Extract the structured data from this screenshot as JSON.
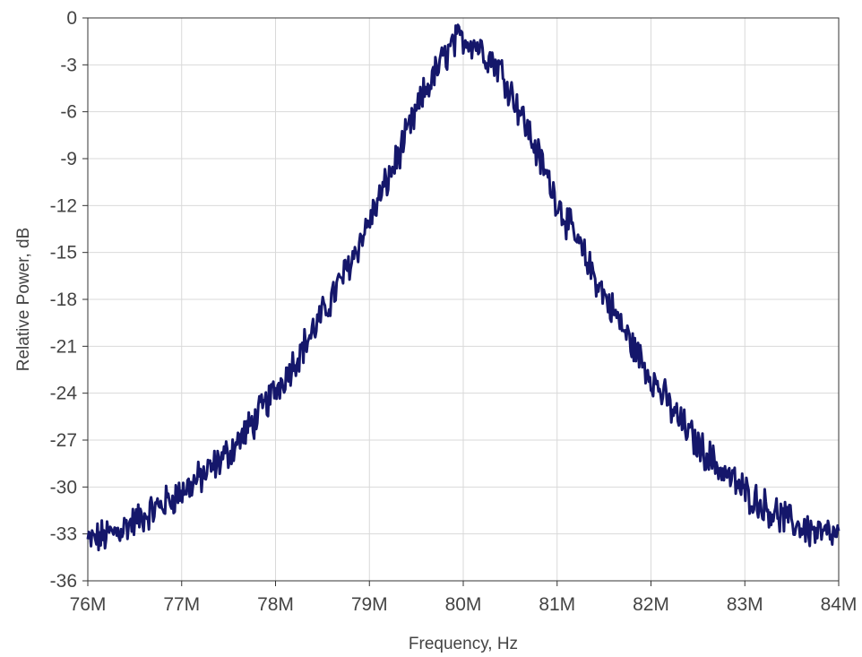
{
  "chart_data": {
    "type": "line",
    "title": "",
    "xlabel": "Frequency, Hz",
    "ylabel": "Relative Power, dB",
    "xlim": [
      76000000,
      84000000
    ],
    "ylim": [
      -36,
      0
    ],
    "grid": true,
    "legend": "none",
    "x_tick_labels": [
      "76M",
      "77M",
      "78M",
      "79M",
      "80M",
      "81M",
      "82M",
      "83M",
      "84M"
    ],
    "y_tick_labels": [
      "0",
      "-3",
      "-6",
      "-9",
      "-12",
      "-15",
      "-18",
      "-21",
      "-24",
      "-27",
      "-30",
      "-33",
      "-36"
    ],
    "line_color": "#15176b",
    "series": [
      {
        "x": [
          76000000,
          76250000,
          76500000,
          76750000,
          77000000,
          77250000,
          77500000,
          77750000,
          78000000,
          78250000,
          78500000,
          78750000,
          79000000,
          79200000,
          79400000,
          79600000,
          79800000,
          79900000,
          80000000,
          80100000,
          80200000,
          80400000,
          80600000,
          80800000,
          81000000,
          81250000,
          81500000,
          81750000,
          82000000,
          82250000,
          82500000,
          82750000,
          83000000,
          83250000,
          83500000,
          83750000,
          84000000
        ],
        "values": [
          -33.5,
          -33.0,
          -32.2,
          -31.3,
          -30.3,
          -29.2,
          -27.8,
          -26.0,
          -23.8,
          -21.5,
          -19.0,
          -16.2,
          -13.0,
          -10.3,
          -7.5,
          -4.6,
          -2.5,
          -1.6,
          -1.3,
          -1.5,
          -2.0,
          -3.3,
          -5.9,
          -8.8,
          -11.7,
          -14.8,
          -17.7,
          -20.4,
          -22.9,
          -25.3,
          -27.3,
          -28.9,
          -30.3,
          -31.4,
          -32.3,
          -32.9,
          -33.2
        ]
      }
    ]
  }
}
